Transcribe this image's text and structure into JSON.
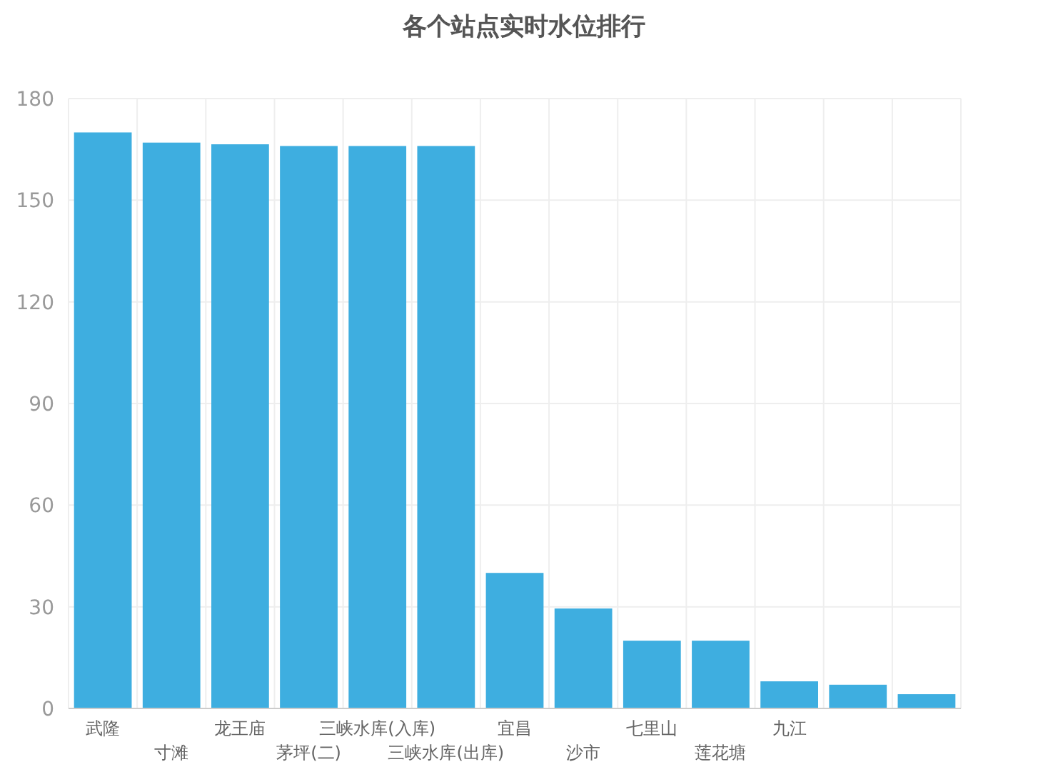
{
  "chart_data": {
    "type": "bar",
    "title": "各个站点实时水位排行",
    "categories": [
      "武隆",
      "寸滩",
      "龙王庙",
      "茅坪(二)",
      "三峡水库(入库)",
      "三峡水库(出库)",
      "宜昌",
      "沙市",
      "七里山",
      "莲花塘",
      "九江",
      null,
      null
    ],
    "values": [
      170,
      167,
      166.5,
      166,
      166,
      166,
      40,
      29.5,
      20,
      20,
      8,
      7,
      4.2
    ],
    "color": "#3eaee0",
    "ylim": [
      0,
      180
    ],
    "yticks": [
      0,
      30,
      60,
      90,
      120,
      150,
      180
    ],
    "grid": true
  }
}
